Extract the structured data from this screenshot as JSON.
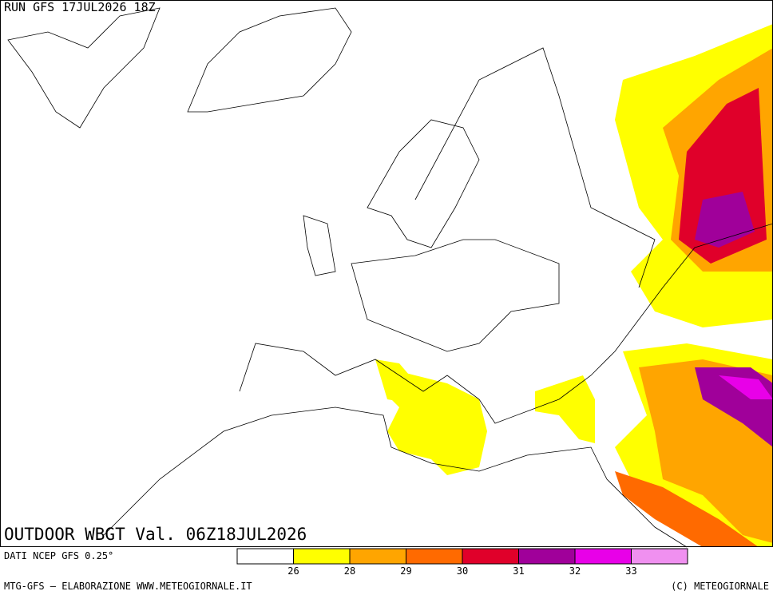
{
  "header": {
    "run": "RUN GFS 17JUL2026 18Z"
  },
  "map": {
    "title": "OUTDOOR WBGT Val. 06Z18JUL2026"
  },
  "legend": {
    "source": "DATI NCEP GFS 0.25°",
    "colors": [
      "#ffffff",
      "#ffff00",
      "#ffa500",
      "#ff6a00",
      "#e0002a",
      "#a0009a",
      "#e800e8",
      "#f090f0"
    ],
    "ticks": [
      26,
      28,
      29,
      30,
      31,
      32,
      33
    ]
  },
  "footer": {
    "left": "MTG-GFS — ELABORAZIONE WWW.METEOGIORNALE.IT",
    "right": "(C) METEOGIORNALE"
  }
}
